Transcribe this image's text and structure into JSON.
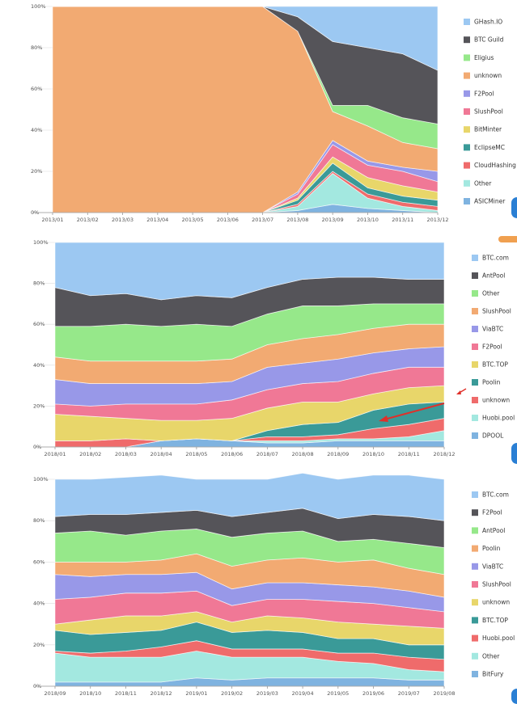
{
  "chart_data": [
    {
      "type": "area",
      "stacked": true,
      "percent": true,
      "categories": [
        "2013/01",
        "2013/02",
        "2013/03",
        "2013/04",
        "2013/05",
        "2013/06",
        "2013/07",
        "2013/08",
        "2013/09",
        "2013/10",
        "2013/11",
        "2013/12"
      ],
      "yticks": [
        "0%",
        "20%",
        "40%",
        "60%",
        "80%",
        "100%"
      ],
      "ylim": [
        0,
        100
      ],
      "legend_position": "right",
      "grid": true,
      "series": [
        {
          "name": "ASICMiner",
          "color": "#7fb3e0",
          "values": [
            0,
            0,
            0,
            0,
            0,
            0,
            0,
            1,
            4,
            2,
            1,
            0
          ]
        },
        {
          "name": "Other",
          "color": "#a3e8e0",
          "values": [
            0,
            0,
            0,
            0,
            0,
            0,
            0,
            2,
            15,
            5,
            2,
            1
          ]
        },
        {
          "name": "CloudHashing",
          "color": "#ef6b6b",
          "values": [
            0,
            0,
            0,
            0,
            0,
            0,
            0,
            1,
            1,
            2,
            2,
            2
          ]
        },
        {
          "name": "EclipseMC",
          "color": "#3a9a98",
          "values": [
            0,
            0,
            0,
            0,
            0,
            0,
            0,
            2,
            4,
            3,
            3,
            3
          ]
        },
        {
          "name": "BitMinter",
          "color": "#e8d66a",
          "values": [
            0,
            0,
            0,
            0,
            0,
            0,
            0,
            1,
            3,
            5,
            5,
            4
          ]
        },
        {
          "name": "SlushPool",
          "color": "#f07896",
          "values": [
            0,
            0,
            0,
            0,
            0,
            0,
            0,
            2,
            6,
            6,
            7,
            5
          ]
        },
        {
          "name": "F2Pool",
          "color": "#9898e8",
          "values": [
            0,
            0,
            0,
            0,
            0,
            0,
            0,
            1,
            2,
            2,
            2,
            5
          ]
        },
        {
          "name": "unknown",
          "color": "#f2aa72",
          "values": [
            100,
            100,
            100,
            100,
            100,
            100,
            100,
            78,
            14,
            17,
            12,
            11
          ]
        },
        {
          "name": "Eligius",
          "color": "#96e88a",
          "values": [
            0,
            0,
            0,
            0,
            0,
            0,
            0,
            0,
            3,
            10,
            12,
            12
          ]
        },
        {
          "name": "BTC Guild",
          "color": "#555459",
          "values": [
            0,
            0,
            0,
            0,
            0,
            0,
            0,
            7,
            31,
            28,
            31,
            26
          ]
        },
        {
          "name": "GHash.IO",
          "color": "#9cc8f2",
          "values": [
            0,
            0,
            0,
            0,
            0,
            0,
            0,
            5,
            17,
            20,
            23,
            31
          ]
        }
      ]
    },
    {
      "type": "area",
      "stacked": true,
      "percent": true,
      "categories": [
        "2018/01",
        "2018/02",
        "2018/03",
        "2018/04",
        "2018/05",
        "2018/06",
        "2018/07",
        "2018/08",
        "2018/09",
        "2018/10",
        "2018/11",
        "2018/12"
      ],
      "yticks": [
        "0%",
        "20%",
        "40%",
        "60%",
        "80%",
        "100%"
      ],
      "ylim": [
        0,
        100
      ],
      "legend_position": "right",
      "grid": true,
      "series": [
        {
          "name": "DPOOL",
          "color": "#7fb3e0",
          "values": [
            0,
            0,
            0,
            3,
            4,
            3,
            2,
            2,
            3,
            3,
            3,
            3
          ]
        },
        {
          "name": "Huobi.pool",
          "color": "#a3e8e0",
          "values": [
            0,
            0,
            0,
            0,
            0,
            0,
            1,
            1,
            1,
            1,
            2,
            5
          ]
        },
        {
          "name": "unknown",
          "color": "#ef6b6b",
          "values": [
            3,
            3,
            4,
            0,
            0,
            0,
            2,
            2,
            2,
            5,
            6,
            6
          ]
        },
        {
          "name": "Poolin",
          "color": "#3a9a98",
          "values": [
            0,
            0,
            0,
            0,
            0,
            0,
            3,
            6,
            6,
            9,
            10,
            8
          ]
        },
        {
          "name": "BTC.TOP",
          "color": "#e8d66a",
          "values": [
            13,
            12,
            10,
            10,
            9,
            11,
            11,
            11,
            10,
            8,
            8,
            8
          ]
        },
        {
          "name": "F2Pool",
          "color": "#f07896",
          "values": [
            5,
            5,
            7,
            8,
            8,
            9,
            9,
            9,
            10,
            10,
            10,
            9
          ]
        },
        {
          "name": "ViaBTC",
          "color": "#9898e8",
          "values": [
            12,
            11,
            10,
            10,
            10,
            9,
            11,
            10,
            11,
            10,
            9,
            10
          ]
        },
        {
          "name": "SlushPool",
          "color": "#f2aa72",
          "values": [
            11,
            11,
            11,
            11,
            11,
            11,
            11,
            12,
            12,
            12,
            12,
            11
          ]
        },
        {
          "name": "Other",
          "color": "#96e88a",
          "values": [
            15,
            17,
            18,
            17,
            18,
            16,
            15,
            16,
            14,
            12,
            10,
            10
          ]
        },
        {
          "name": "AntPool",
          "color": "#555459",
          "values": [
            19,
            15,
            15,
            13,
            14,
            14,
            13,
            13,
            14,
            13,
            12,
            12
          ]
        },
        {
          "name": "BTC.com",
          "color": "#9cc8f2",
          "values": [
            22,
            26,
            25,
            28,
            26,
            27,
            22,
            18,
            17,
            17,
            18,
            18
          ]
        }
      ]
    },
    {
      "type": "area",
      "stacked": true,
      "percent": true,
      "categories": [
        "2018/09",
        "2018/10",
        "2018/11",
        "2018/12",
        "2019/01",
        "2019/02",
        "2019/03",
        "2019/04",
        "2019/05",
        "2019/06",
        "2019/07",
        "2019/08"
      ],
      "yticks": [
        "0%",
        "20%",
        "40%",
        "60%",
        "80%",
        "100%"
      ],
      "ylim": [
        0,
        100
      ],
      "legend_position": "right",
      "grid": true,
      "series": [
        {
          "name": "BitFury",
          "color": "#7fb3e0",
          "values": [
            2,
            2,
            2,
            2,
            4,
            3,
            4,
            4,
            4,
            4,
            3,
            3
          ]
        },
        {
          "name": "Other",
          "color": "#a3e8e0",
          "values": [
            14,
            12,
            12,
            12,
            13,
            11,
            10,
            10,
            8,
            7,
            5,
            4
          ]
        },
        {
          "name": "Huobi.pool",
          "color": "#ef6b6b",
          "values": [
            1,
            2,
            3,
            5,
            5,
            4,
            4,
            4,
            4,
            5,
            6,
            6
          ]
        },
        {
          "name": "BTC.TOP",
          "color": "#3a9a98",
          "values": [
            10,
            9,
            9,
            8,
            9,
            8,
            9,
            8,
            7,
            7,
            6,
            7
          ]
        },
        {
          "name": "unknown",
          "color": "#e8d66a",
          "values": [
            3,
            7,
            8,
            7,
            5,
            5,
            7,
            7,
            8,
            7,
            9,
            8
          ]
        },
        {
          "name": "SlushPool",
          "color": "#f07896",
          "values": [
            12,
            11,
            11,
            11,
            10,
            8,
            8,
            9,
            10,
            10,
            9,
            8
          ]
        },
        {
          "name": "ViaBTC",
          "color": "#9898e8",
          "values": [
            12,
            10,
            9,
            9,
            9,
            8,
            8,
            8,
            8,
            8,
            8,
            7
          ]
        },
        {
          "name": "Poolin",
          "color": "#f2aa72",
          "values": [
            6,
            7,
            6,
            7,
            9,
            11,
            11,
            12,
            11,
            13,
            11,
            11
          ]
        },
        {
          "name": "AntPool",
          "color": "#96e88a",
          "values": [
            14,
            15,
            13,
            14,
            12,
            14,
            13,
            13,
            10,
            10,
            12,
            13
          ]
        },
        {
          "name": "F2Pool",
          "color": "#555459",
          "values": [
            8,
            8,
            10,
            9,
            9,
            10,
            10,
            11,
            11,
            12,
            13,
            13
          ]
        },
        {
          "name": "BTC.com",
          "color": "#9cc8f2",
          "values": [
            18,
            17,
            18,
            18,
            15,
            18,
            16,
            17,
            19,
            19,
            20,
            20
          ]
        }
      ]
    }
  ]
}
